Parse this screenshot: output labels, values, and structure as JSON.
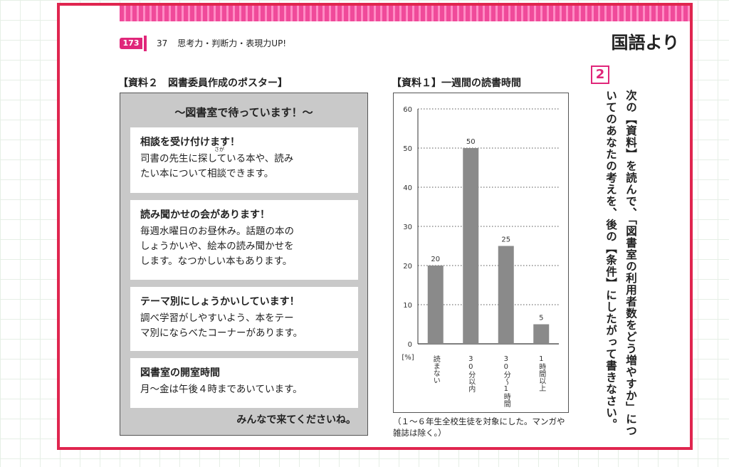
{
  "header": {
    "page_number": "173",
    "unit_number": "37",
    "unit_title": "思考力・判断力・表現力UP!",
    "source_title": "国語より"
  },
  "poster": {
    "label": "【資料２　図書委員作成のポスター】",
    "title": "～図書室で待っています！～",
    "cards": [
      {
        "heading": "相談を受け付けます！",
        "body": "司書の先生に探している本や、読み\nたい本について相談できます。"
      },
      {
        "heading": "読み聞かせの会があります！",
        "body": "毎週水曜日のお昼休み。話題の本の\nしょうかいや、絵本の読み聞かせを\nします。なつかしい本もあります。"
      },
      {
        "heading": "テーマ別にしょうかいしています！",
        "body": "調べ学習がしやすいよう、本をテー\nマ別にならべたコーナーがあります。"
      },
      {
        "heading": "図書室の開室時間",
        "body": "月～金は午後４時まであいています。"
      }
    ],
    "footer": "みんなで来てくださいね。",
    "ruby": "さが"
  },
  "chart_label": "【資料１】一週間の読書時間",
  "chart_note": "（１～６年生全校生徒を対象にした。マンガや雑誌は除く。）",
  "chart_data": {
    "type": "bar",
    "title": "【資料１】一週間の読書時間",
    "categories": [
      "読まない",
      "30分以内",
      "30分～1時間",
      "1時間以上"
    ],
    "values": [
      20,
      50,
      25,
      5
    ],
    "ylabel": "[%]",
    "ylim": [
      0,
      60
    ],
    "yticks": [
      0,
      10,
      20,
      30,
      40,
      50,
      60
    ],
    "grid": true,
    "bar_color": "#8a8a8a"
  },
  "question": {
    "number": "2",
    "text": "次の【資料】を読んで、「図書室の利用者数をどう増やすか」についてのあなたの考えを、後の【条件】にしたがって書きなさい。"
  }
}
